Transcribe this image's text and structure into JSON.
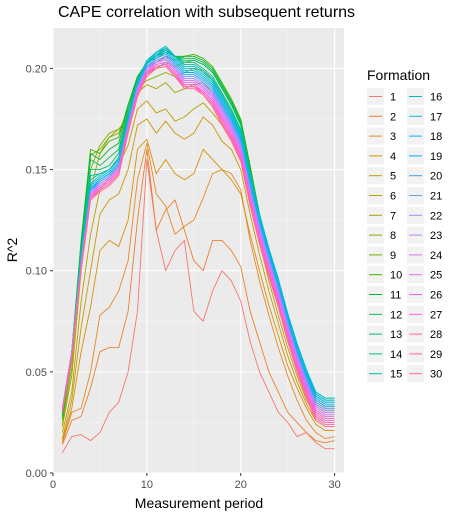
{
  "chart_data": {
    "type": "line",
    "title": "CAPE correlation with subsequent returns",
    "xlabel": "Measurement period",
    "ylabel": "R^2",
    "xlim": [
      0,
      31
    ],
    "ylim": [
      0,
      0.22
    ],
    "x_ticks": [
      0,
      10,
      20,
      30
    ],
    "y_ticks": [
      0.0,
      0.05,
      0.1,
      0.15,
      0.2
    ],
    "x_tick_labels": [
      "0",
      "10",
      "20",
      "30"
    ],
    "y_tick_labels": [
      "0.00",
      "0.05",
      "0.10",
      "0.15",
      "0.20"
    ],
    "grid": true,
    "legend": {
      "title": "Formation",
      "placement": "right",
      "columns": 2
    },
    "x": [
      1,
      2,
      3,
      4,
      5,
      6,
      7,
      8,
      9,
      10,
      11,
      12,
      13,
      14,
      15,
      16,
      17,
      18,
      19,
      20,
      21,
      22,
      23,
      24,
      25,
      26,
      27,
      28,
      29,
      30
    ],
    "series": [
      {
        "name": "1",
        "color": "#F8766D",
        "values": [
          0.01,
          0.018,
          0.019,
          0.016,
          0.02,
          0.03,
          0.035,
          0.05,
          0.08,
          0.155,
          0.12,
          0.1,
          0.11,
          0.115,
          0.08,
          0.075,
          0.09,
          0.1,
          0.095,
          0.085,
          0.065,
          0.05,
          0.04,
          0.03,
          0.025,
          0.018,
          0.02,
          0.015,
          0.012,
          0.012
        ]
      },
      {
        "name": "2",
        "color": "#EE7E2E",
        "values": [
          0.014,
          0.026,
          0.028,
          0.042,
          0.06,
          0.062,
          0.062,
          0.08,
          0.125,
          0.16,
          0.12,
          0.13,
          0.135,
          0.12,
          0.105,
          0.1,
          0.115,
          0.115,
          0.11,
          0.102,
          0.08,
          0.065,
          0.05,
          0.04,
          0.03,
          0.025,
          0.02,
          0.016,
          0.015,
          0.016
        ]
      },
      {
        "name": "3",
        "color": "#E58A23",
        "values": [
          0.015,
          0.03,
          0.032,
          0.05,
          0.078,
          0.082,
          0.09,
          0.105,
          0.145,
          0.163,
          0.138,
          0.132,
          0.118,
          0.122,
          0.125,
          0.136,
          0.148,
          0.15,
          0.148,
          0.14,
          0.115,
          0.095,
          0.078,
          0.062,
          0.048,
          0.036,
          0.026,
          0.02,
          0.017,
          0.018
        ]
      },
      {
        "name": "4",
        "color": "#D99100",
        "values": [
          0.016,
          0.032,
          0.06,
          0.082,
          0.11,
          0.115,
          0.112,
          0.125,
          0.16,
          0.165,
          0.148,
          0.155,
          0.148,
          0.145,
          0.148,
          0.16,
          0.155,
          0.15,
          0.145,
          0.138,
          0.118,
          0.1,
          0.083,
          0.068,
          0.053,
          0.042,
          0.032,
          0.024,
          0.021,
          0.021
        ]
      },
      {
        "name": "5",
        "color": "#C99800",
        "values": [
          0.017,
          0.036,
          0.072,
          0.1,
          0.128,
          0.135,
          0.138,
          0.15,
          0.172,
          0.175,
          0.168,
          0.174,
          0.168,
          0.165,
          0.168,
          0.176,
          0.172,
          0.164,
          0.16,
          0.15,
          0.128,
          0.108,
          0.09,
          0.074,
          0.058,
          0.045,
          0.034,
          0.026,
          0.023,
          0.023
        ]
      },
      {
        "name": "6",
        "color": "#B89F00",
        "values": [
          0.02,
          0.04,
          0.085,
          0.118,
          0.14,
          0.146,
          0.152,
          0.162,
          0.18,
          0.184,
          0.178,
          0.18,
          0.174,
          0.176,
          0.18,
          0.183,
          0.178,
          0.172,
          0.166,
          0.156,
          0.134,
          0.114,
          0.095,
          0.078,
          0.062,
          0.048,
          0.036,
          0.028,
          0.025,
          0.025
        ]
      },
      {
        "name": "7",
        "color": "#A3A500",
        "values": [
          0.023,
          0.048,
          0.1,
          0.14,
          0.158,
          0.166,
          0.17,
          0.172,
          0.188,
          0.192,
          0.19,
          0.193,
          0.188,
          0.19,
          0.192,
          0.193,
          0.188,
          0.18,
          0.172,
          0.162,
          0.14,
          0.118,
          0.099,
          0.082,
          0.065,
          0.051,
          0.038,
          0.03,
          0.027,
          0.027
        ]
      },
      {
        "name": "8",
        "color": "#8CAB00",
        "values": [
          0.024,
          0.052,
          0.108,
          0.15,
          0.162,
          0.168,
          0.17,
          0.176,
          0.19,
          0.194,
          0.196,
          0.198,
          0.196,
          0.198,
          0.2,
          0.199,
          0.194,
          0.186,
          0.178,
          0.168,
          0.145,
          0.122,
          0.103,
          0.086,
          0.068,
          0.053,
          0.04,
          0.031,
          0.028,
          0.028
        ]
      },
      {
        "name": "9",
        "color": "#6EB100",
        "values": [
          0.026,
          0.056,
          0.112,
          0.157,
          0.16,
          0.166,
          0.168,
          0.18,
          0.194,
          0.198,
          0.2,
          0.203,
          0.201,
          0.203,
          0.204,
          0.202,
          0.198,
          0.19,
          0.182,
          0.172,
          0.15,
          0.126,
          0.106,
          0.089,
          0.07,
          0.055,
          0.042,
          0.033,
          0.03,
          0.03
        ]
      },
      {
        "name": "10",
        "color": "#39B600",
        "values": [
          0.027,
          0.058,
          0.115,
          0.16,
          0.158,
          0.164,
          0.166,
          0.182,
          0.196,
          0.201,
          0.203,
          0.206,
          0.204,
          0.206,
          0.207,
          0.205,
          0.201,
          0.193,
          0.185,
          0.175,
          0.152,
          0.128,
          0.108,
          0.091,
          0.072,
          0.056,
          0.043,
          0.034,
          0.031,
          0.031
        ]
      },
      {
        "name": "11",
        "color": "#00B92A",
        "values": [
          0.028,
          0.06,
          0.115,
          0.158,
          0.155,
          0.16,
          0.163,
          0.182,
          0.196,
          0.203,
          0.205,
          0.208,
          0.206,
          0.206,
          0.206,
          0.204,
          0.2,
          0.192,
          0.184,
          0.174,
          0.151,
          0.128,
          0.108,
          0.092,
          0.073,
          0.057,
          0.044,
          0.035,
          0.032,
          0.032
        ]
      },
      {
        "name": "12",
        "color": "#00BC51",
        "values": [
          0.029,
          0.06,
          0.113,
          0.155,
          0.152,
          0.156,
          0.16,
          0.18,
          0.195,
          0.203,
          0.206,
          0.209,
          0.206,
          0.205,
          0.205,
          0.203,
          0.199,
          0.191,
          0.183,
          0.173,
          0.15,
          0.128,
          0.109,
          0.093,
          0.075,
          0.059,
          0.046,
          0.036,
          0.033,
          0.033
        ]
      },
      {
        "name": "13",
        "color": "#00BE6C",
        "values": [
          0.03,
          0.06,
          0.112,
          0.15,
          0.15,
          0.152,
          0.158,
          0.178,
          0.194,
          0.203,
          0.206,
          0.21,
          0.206,
          0.204,
          0.204,
          0.202,
          0.198,
          0.19,
          0.182,
          0.172,
          0.149,
          0.128,
          0.11,
          0.094,
          0.076,
          0.061,
          0.048,
          0.038,
          0.035,
          0.035
        ]
      },
      {
        "name": "14",
        "color": "#00C08B",
        "values": [
          0.03,
          0.06,
          0.11,
          0.147,
          0.148,
          0.15,
          0.156,
          0.177,
          0.194,
          0.203,
          0.207,
          0.21,
          0.206,
          0.203,
          0.203,
          0.2,
          0.196,
          0.188,
          0.18,
          0.17,
          0.148,
          0.128,
          0.111,
          0.095,
          0.078,
          0.063,
          0.05,
          0.039,
          0.036,
          0.036
        ]
      },
      {
        "name": "15",
        "color": "#00C0A7",
        "values": [
          0.031,
          0.06,
          0.108,
          0.145,
          0.148,
          0.15,
          0.155,
          0.176,
          0.194,
          0.204,
          0.208,
          0.211,
          0.206,
          0.202,
          0.202,
          0.199,
          0.195,
          0.187,
          0.179,
          0.169,
          0.147,
          0.128,
          0.111,
          0.096,
          0.079,
          0.064,
          0.051,
          0.04,
          0.037,
          0.037
        ]
      },
      {
        "name": "16",
        "color": "#00BFC4",
        "values": [
          0.031,
          0.06,
          0.107,
          0.143,
          0.147,
          0.15,
          0.155,
          0.175,
          0.193,
          0.203,
          0.208,
          0.211,
          0.206,
          0.201,
          0.201,
          0.198,
          0.194,
          0.186,
          0.178,
          0.168,
          0.146,
          0.127,
          0.111,
          0.096,
          0.079,
          0.064,
          0.051,
          0.04,
          0.037,
          0.037
        ]
      },
      {
        "name": "17",
        "color": "#00BDD8",
        "values": [
          0.032,
          0.06,
          0.106,
          0.142,
          0.146,
          0.149,
          0.154,
          0.175,
          0.193,
          0.203,
          0.208,
          0.21,
          0.205,
          0.2,
          0.2,
          0.197,
          0.193,
          0.185,
          0.177,
          0.167,
          0.145,
          0.126,
          0.11,
          0.095,
          0.078,
          0.063,
          0.05,
          0.039,
          0.036,
          0.036
        ]
      },
      {
        "name": "18",
        "color": "#00B8E7",
        "values": [
          0.032,
          0.06,
          0.106,
          0.141,
          0.145,
          0.148,
          0.153,
          0.174,
          0.192,
          0.202,
          0.207,
          0.209,
          0.204,
          0.199,
          0.199,
          0.196,
          0.192,
          0.184,
          0.176,
          0.166,
          0.144,
          0.125,
          0.109,
          0.094,
          0.077,
          0.062,
          0.049,
          0.038,
          0.035,
          0.035
        ]
      },
      {
        "name": "19",
        "color": "#00B0F6",
        "values": [
          0.032,
          0.06,
          0.105,
          0.14,
          0.145,
          0.148,
          0.153,
          0.173,
          0.192,
          0.202,
          0.206,
          0.208,
          0.203,
          0.198,
          0.198,
          0.195,
          0.191,
          0.183,
          0.175,
          0.165,
          0.143,
          0.124,
          0.108,
          0.093,
          0.076,
          0.061,
          0.048,
          0.037,
          0.034,
          0.034
        ]
      },
      {
        "name": "20",
        "color": "#35A2FF",
        "values": [
          0.032,
          0.06,
          0.105,
          0.14,
          0.144,
          0.147,
          0.152,
          0.173,
          0.191,
          0.201,
          0.205,
          0.207,
          0.202,
          0.197,
          0.197,
          0.194,
          0.19,
          0.182,
          0.174,
          0.164,
          0.142,
          0.123,
          0.107,
          0.092,
          0.075,
          0.06,
          0.047,
          0.036,
          0.033,
          0.033
        ]
      },
      {
        "name": "21",
        "color": "#7698FF",
        "values": [
          0.032,
          0.06,
          0.104,
          0.139,
          0.144,
          0.147,
          0.152,
          0.172,
          0.191,
          0.201,
          0.204,
          0.206,
          0.201,
          0.196,
          0.196,
          0.193,
          0.189,
          0.181,
          0.173,
          0.163,
          0.141,
          0.122,
          0.106,
          0.091,
          0.074,
          0.059,
          0.046,
          0.035,
          0.032,
          0.032
        ]
      },
      {
        "name": "22",
        "color": "#9F8CFF",
        "values": [
          0.032,
          0.06,
          0.104,
          0.139,
          0.143,
          0.146,
          0.151,
          0.172,
          0.19,
          0.2,
          0.204,
          0.205,
          0.2,
          0.195,
          0.195,
          0.192,
          0.188,
          0.18,
          0.172,
          0.162,
          0.14,
          0.121,
          0.105,
          0.09,
          0.073,
          0.058,
          0.045,
          0.034,
          0.031,
          0.031
        ]
      },
      {
        "name": "23",
        "color": "#BF80FF",
        "values": [
          0.032,
          0.06,
          0.104,
          0.138,
          0.143,
          0.146,
          0.151,
          0.171,
          0.19,
          0.2,
          0.203,
          0.205,
          0.2,
          0.194,
          0.194,
          0.191,
          0.187,
          0.179,
          0.171,
          0.161,
          0.139,
          0.12,
          0.104,
          0.089,
          0.072,
          0.057,
          0.044,
          0.033,
          0.03,
          0.03
        ]
      },
      {
        "name": "24",
        "color": "#D774FD",
        "values": [
          0.032,
          0.06,
          0.103,
          0.138,
          0.142,
          0.145,
          0.15,
          0.171,
          0.189,
          0.199,
          0.203,
          0.204,
          0.199,
          0.194,
          0.194,
          0.191,
          0.186,
          0.178,
          0.17,
          0.16,
          0.138,
          0.119,
          0.103,
          0.088,
          0.071,
          0.056,
          0.043,
          0.032,
          0.029,
          0.029
        ]
      },
      {
        "name": "25",
        "color": "#E96AF0",
        "values": [
          0.031,
          0.059,
          0.103,
          0.137,
          0.142,
          0.145,
          0.15,
          0.17,
          0.189,
          0.199,
          0.202,
          0.203,
          0.198,
          0.193,
          0.193,
          0.19,
          0.185,
          0.177,
          0.169,
          0.159,
          0.137,
          0.118,
          0.102,
          0.087,
          0.07,
          0.055,
          0.042,
          0.031,
          0.028,
          0.028
        ]
      },
      {
        "name": "26",
        "color": "#F564E3",
        "values": [
          0.031,
          0.059,
          0.102,
          0.137,
          0.141,
          0.144,
          0.149,
          0.17,
          0.188,
          0.198,
          0.202,
          0.203,
          0.198,
          0.192,
          0.192,
          0.189,
          0.184,
          0.176,
          0.168,
          0.158,
          0.136,
          0.117,
          0.101,
          0.086,
          0.069,
          0.054,
          0.041,
          0.03,
          0.027,
          0.027
        ]
      },
      {
        "name": "27",
        "color": "#FC61D5",
        "values": [
          0.031,
          0.058,
          0.102,
          0.136,
          0.141,
          0.144,
          0.149,
          0.169,
          0.188,
          0.198,
          0.201,
          0.202,
          0.197,
          0.192,
          0.192,
          0.188,
          0.183,
          0.175,
          0.167,
          0.157,
          0.135,
          0.116,
          0.1,
          0.085,
          0.068,
          0.053,
          0.04,
          0.029,
          0.026,
          0.026
        ]
      },
      {
        "name": "28",
        "color": "#FF62BC",
        "values": [
          0.031,
          0.058,
          0.101,
          0.136,
          0.14,
          0.143,
          0.148,
          0.169,
          0.187,
          0.197,
          0.201,
          0.202,
          0.197,
          0.191,
          0.191,
          0.188,
          0.183,
          0.174,
          0.166,
          0.156,
          0.134,
          0.115,
          0.099,
          0.084,
          0.067,
          0.052,
          0.039,
          0.028,
          0.025,
          0.025
        ]
      },
      {
        "name": "29",
        "color": "#FF67A4",
        "values": [
          0.03,
          0.058,
          0.101,
          0.135,
          0.14,
          0.143,
          0.148,
          0.168,
          0.187,
          0.197,
          0.2,
          0.201,
          0.196,
          0.191,
          0.191,
          0.187,
          0.182,
          0.173,
          0.165,
          0.155,
          0.133,
          0.114,
          0.098,
          0.083,
          0.066,
          0.051,
          0.038,
          0.027,
          0.024,
          0.024
        ]
      },
      {
        "name": "30",
        "color": "#FF6C91",
        "values": [
          0.03,
          0.057,
          0.1,
          0.135,
          0.139,
          0.142,
          0.147,
          0.168,
          0.186,
          0.196,
          0.2,
          0.201,
          0.196,
          0.19,
          0.19,
          0.187,
          0.181,
          0.172,
          0.164,
          0.154,
          0.132,
          0.113,
          0.097,
          0.082,
          0.065,
          0.05,
          0.037,
          0.026,
          0.023,
          0.023
        ]
      }
    ]
  }
}
